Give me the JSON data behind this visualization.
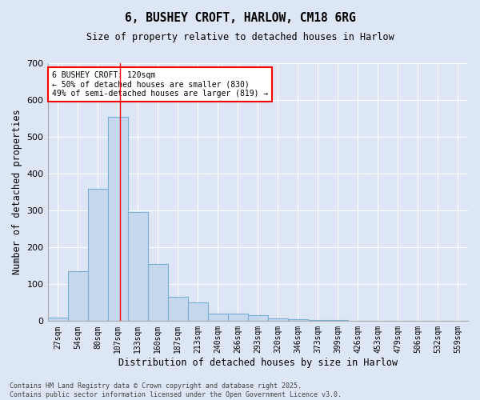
{
  "title": "6, BUSHEY CROFT, HARLOW, CM18 6RG",
  "subtitle": "Size of property relative to detached houses in Harlow",
  "xlabel": "Distribution of detached houses by size in Harlow",
  "ylabel": "Number of detached properties",
  "bar_color": "#c5d8ee",
  "bar_edge_color": "#7aafd4",
  "background_color": "#dce6f5",
  "grid_color": "#ffffff",
  "categories": [
    "27sqm",
    "54sqm",
    "80sqm",
    "107sqm",
    "133sqm",
    "160sqm",
    "187sqm",
    "213sqm",
    "240sqm",
    "266sqm",
    "293sqm",
    "320sqm",
    "346sqm",
    "373sqm",
    "399sqm",
    "426sqm",
    "453sqm",
    "479sqm",
    "506sqm",
    "532sqm",
    "559sqm"
  ],
  "values": [
    10,
    135,
    360,
    555,
    295,
    155,
    65,
    50,
    20,
    20,
    15,
    8,
    5,
    3,
    2,
    1,
    1,
    0,
    0,
    0,
    0
  ],
  "ylim": [
    0,
    700
  ],
  "yticks": [
    0,
    100,
    200,
    300,
    400,
    500,
    600,
    700
  ],
  "annotation_text": "6 BUSHEY CROFT: 120sqm\n← 50% of detached houses are smaller (830)\n49% of semi-detached houses are larger (819) →",
  "vline_x_index": 3,
  "vline_x_offset": 0.13,
  "footnote": "Contains HM Land Registry data © Crown copyright and database right 2025.\nContains public sector information licensed under the Open Government Licence v3.0.",
  "figsize": [
    6.0,
    5.0
  ],
  "dpi": 100
}
